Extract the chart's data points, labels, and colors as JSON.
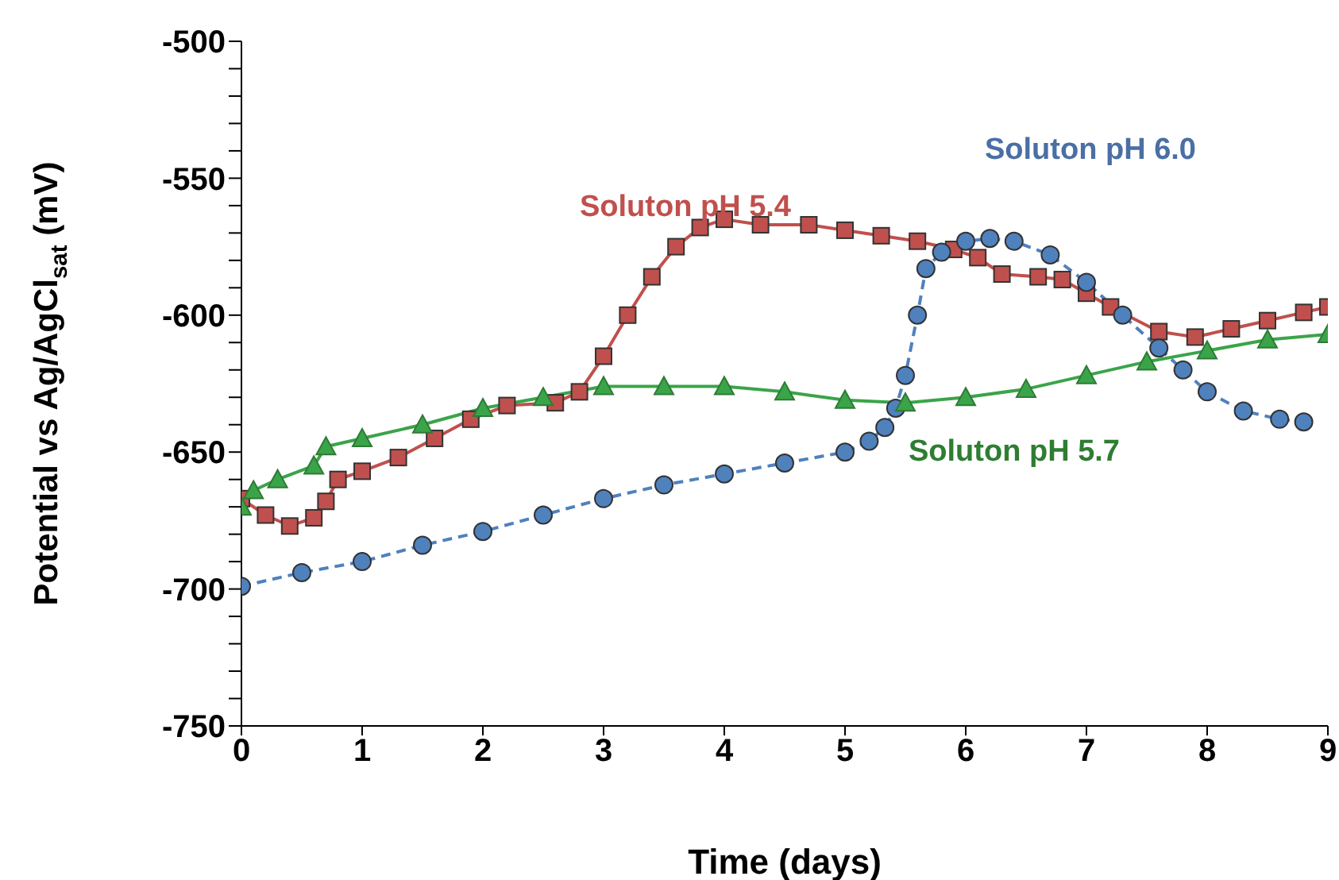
{
  "chart_data": {
    "type": "line",
    "xlabel": "Time (days)",
    "ylabel": "Potential vs Ag/AgCl$_{sat}$ (mV)",
    "xlim": [
      0,
      9
    ],
    "xticks": [
      0,
      1,
      2,
      3,
      4,
      5,
      6,
      7,
      8,
      9
    ],
    "ylim": [
      -750,
      -500
    ],
    "yticks": [
      -750,
      {
        "value": -740,
        "label": null
      },
      {
        "value": -730,
        "label": null
      },
      {
        "value": -720,
        "label": null
      },
      {
        "value": -710,
        "label": null
      },
      -700,
      {
        "value": -690,
        "label": null
      },
      {
        "value": -680,
        "label": null
      },
      {
        "value": -670,
        "label": null
      },
      {
        "value": -660,
        "label": null
      },
      -650,
      {
        "value": -640,
        "label": null
      },
      {
        "value": -630,
        "label": null
      },
      {
        "value": -620,
        "label": null
      },
      {
        "value": -610,
        "label": null
      },
      -600,
      {
        "value": -590,
        "label": null
      },
      {
        "value": -580,
        "label": null
      },
      {
        "value": -570,
        "label": null
      },
      {
        "value": -560,
        "label": null
      },
      -550,
      {
        "value": -540,
        "label": null
      },
      {
        "value": -530,
        "label": null
      },
      {
        "value": -520,
        "label": null
      },
      {
        "value": -510,
        "label": null
      },
      -500
    ],
    "grid": false,
    "legend": false,
    "series": [
      {
        "name": "Soluton pH 5.4",
        "color": "#c0504d",
        "marker": "square",
        "line_style": "solid",
        "x": [
          0,
          0.2,
          0.4,
          0.6,
          0.7,
          0.8,
          1.0,
          1.3,
          1.6,
          1.9,
          2.2,
          2.6,
          2.8,
          3.0,
          3.2,
          3.4,
          3.6,
          3.8,
          4.0,
          4.3,
          4.7,
          5.0,
          5.3,
          5.6,
          5.9,
          6.1,
          6.3,
          6.6,
          6.8,
          7.0,
          7.2,
          7.6,
          7.9,
          8.2,
          8.5,
          8.8,
          9.0
        ],
        "values": [
          -667,
          -673,
          -677,
          -674,
          -668,
          -660,
          -657,
          -652,
          -645,
          -638,
          -633,
          -632,
          -628,
          -615,
          -600,
          -586,
          -575,
          -568,
          -565,
          -567,
          -567,
          -569,
          -571,
          -573,
          -576,
          -579,
          -585,
          -586,
          -587,
          -592,
          -597,
          -606,
          -608,
          -605,
          -602,
          -599,
          -597
        ]
      },
      {
        "name": "Soluton pH 6.0",
        "color": "#4f81bd",
        "marker": "circle",
        "line_style": "dashed",
        "x": [
          0,
          0.5,
          1.0,
          1.5,
          2.0,
          2.5,
          3.0,
          3.5,
          4.0,
          4.5,
          5.0,
          5.2,
          5.33,
          5.42,
          5.5,
          5.6,
          5.67,
          5.8,
          6.0,
          6.2,
          6.4,
          6.7,
          7.0,
          7.3,
          7.6,
          7.8,
          8.0,
          8.3,
          8.6,
          8.8
        ],
        "values": [
          -699,
          -694,
          -690,
          -684,
          -679,
          -673,
          -667,
          -662,
          -658,
          -654,
          -650,
          -646,
          -641,
          -634,
          -622,
          -600,
          -583,
          -577,
          -573,
          -572,
          -573,
          -578,
          -588,
          -600,
          -612,
          -620,
          -628,
          -635,
          -638,
          -639
        ]
      },
      {
        "name": "Soluton pH 5.7",
        "color": "#3aa449",
        "marker": "triangle",
        "line_style": "solid",
        "x": [
          0,
          0.1,
          0.3,
          0.6,
          0.7,
          1.0,
          1.5,
          2.0,
          2.5,
          3.0,
          3.5,
          4.0,
          4.5,
          5.0,
          5.5,
          6.0,
          6.5,
          7.0,
          7.5,
          8.0,
          8.5,
          9.0
        ],
        "values": [
          -670,
          -664,
          -660,
          -655,
          -648,
          -645,
          -640,
          -634,
          -630,
          -626,
          -626,
          -626,
          -628,
          -631,
          -632,
          -630,
          -627,
          -622,
          -617,
          -613,
          -609,
          -607
        ]
      }
    ]
  }
}
